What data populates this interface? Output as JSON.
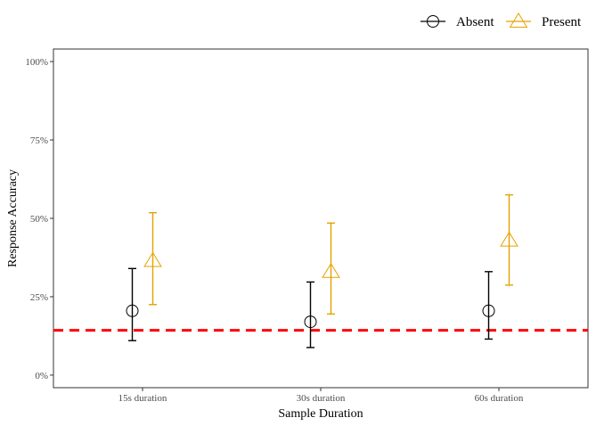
{
  "chart_data": {
    "type": "scatter",
    "xlabel": "Sample Duration",
    "ylabel": "Response Accuracy",
    "categories": [
      "15s duration",
      "30s duration",
      "60s duration"
    ],
    "ylim": [
      -0.04,
      1.04
    ],
    "yticks": [
      0,
      0.25,
      0.5,
      0.75,
      1.0
    ],
    "ytick_labels": [
      "0%",
      "25%",
      "50%",
      "75%",
      "100%"
    ],
    "grid": false,
    "legend_position": "top-right",
    "reference_line": {
      "y": 0.143,
      "style": "dashed",
      "color": "#ff0000"
    },
    "series": [
      {
        "name": "Absent",
        "marker": "circle",
        "color": "#000000",
        "values": [
          0.205,
          0.17,
          0.205
        ],
        "lower": [
          0.11,
          0.088,
          0.115
        ],
        "upper": [
          0.34,
          0.297,
          0.33
        ]
      },
      {
        "name": "Present",
        "marker": "triangle",
        "color": "#e6a100",
        "values": [
          0.365,
          0.33,
          0.43
        ],
        "lower": [
          0.225,
          0.195,
          0.287
        ],
        "upper": [
          0.518,
          0.485,
          0.575
        ]
      }
    ]
  }
}
